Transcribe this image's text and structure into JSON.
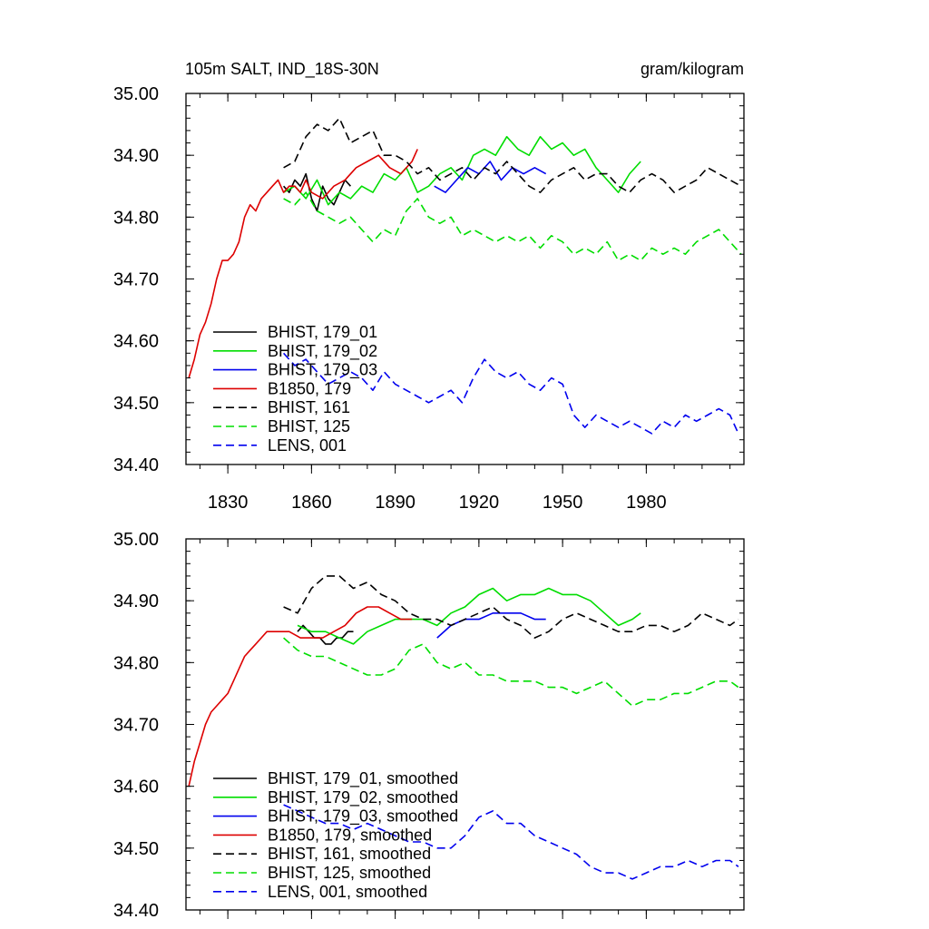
{
  "chart_data": [
    {
      "type": "line",
      "title_left": "105m SALT, IND_18S-30N",
      "title_right": "gram/kilogram",
      "xlim": [
        1815,
        2015
      ],
      "ylim": [
        34.4,
        35.0
      ],
      "xticks": [
        1830,
        1860,
        1890,
        1920,
        1950,
        1980
      ],
      "xtick_labels": [
        "1830",
        "1860",
        "1890",
        "1920",
        "1950",
        "1980"
      ],
      "yticks": [
        34.4,
        34.5,
        34.6,
        34.7,
        34.8,
        34.9,
        35.0
      ],
      "ytick_labels": [
        "34.40",
        "34.50",
        "34.60",
        "34.70",
        "34.80",
        "34.90",
        "35.00"
      ],
      "legend_position": "bottom-left",
      "series": [
        {
          "name": "BHIST, 179_01",
          "color": "#000000",
          "dash": "solid",
          "x": [
            1850,
            1852,
            1854,
            1856,
            1858,
            1860,
            1862,
            1864,
            1866,
            1868,
            1870,
            1872,
            1874
          ],
          "y": [
            34.85,
            34.84,
            34.86,
            34.85,
            34.87,
            34.83,
            34.81,
            34.85,
            34.83,
            34.82,
            34.84,
            34.86,
            34.85
          ]
        },
        {
          "name": "BHIST, 179_02",
          "color": "#00dd00",
          "dash": "solid",
          "x": [
            1850,
            1854,
            1858,
            1862,
            1866,
            1870,
            1874,
            1878,
            1882,
            1886,
            1890,
            1894,
            1898,
            1902,
            1906,
            1910,
            1914,
            1918,
            1922,
            1926,
            1930,
            1934,
            1938,
            1942,
            1946,
            1950,
            1954,
            1958,
            1962,
            1966,
            1970,
            1974,
            1978
          ],
          "y": [
            34.84,
            34.85,
            34.83,
            34.86,
            34.82,
            34.84,
            34.83,
            34.85,
            34.84,
            34.87,
            34.86,
            34.88,
            34.84,
            34.85,
            34.87,
            34.88,
            34.86,
            34.9,
            34.91,
            34.9,
            34.93,
            34.91,
            34.9,
            34.93,
            34.91,
            34.92,
            34.9,
            34.91,
            34.88,
            34.86,
            34.84,
            34.87,
            34.89
          ]
        },
        {
          "name": "BHIST, 179_03",
          "color": "#0000ee",
          "dash": "solid",
          "x": [
            1904,
            1908,
            1912,
            1916,
            1920,
            1924,
            1928,
            1932,
            1936,
            1940,
            1944
          ],
          "y": [
            34.85,
            34.84,
            34.86,
            34.88,
            34.87,
            34.89,
            34.86,
            34.88,
            34.87,
            34.88,
            34.87
          ]
        },
        {
          "name": "B1850, 179",
          "color": "#dd0000",
          "dash": "solid",
          "x": [
            1816,
            1818,
            1820,
            1822,
            1824,
            1826,
            1828,
            1830,
            1832,
            1834,
            1836,
            1838,
            1840,
            1842,
            1844,
            1846,
            1848,
            1850,
            1852,
            1854,
            1856,
            1858,
            1860,
            1864,
            1868,
            1872,
            1876,
            1880,
            1884,
            1888,
            1892,
            1896,
            1898
          ],
          "y": [
            34.54,
            34.57,
            34.61,
            34.63,
            34.66,
            34.7,
            34.73,
            34.73,
            34.74,
            34.76,
            34.8,
            34.82,
            34.81,
            34.83,
            34.84,
            34.85,
            34.86,
            34.84,
            34.85,
            34.85,
            34.84,
            34.86,
            34.84,
            34.83,
            34.85,
            34.86,
            34.88,
            34.89,
            34.9,
            34.88,
            34.87,
            34.89,
            34.91
          ]
        },
        {
          "name": "BHIST, 161",
          "color": "#000000",
          "dash": "dashed",
          "x": [
            1850,
            1854,
            1858,
            1862,
            1866,
            1870,
            1874,
            1878,
            1882,
            1886,
            1890,
            1894,
            1898,
            1902,
            1906,
            1910,
            1914,
            1918,
            1922,
            1926,
            1930,
            1934,
            1938,
            1942,
            1946,
            1950,
            1954,
            1958,
            1962,
            1966,
            1970,
            1974,
            1978,
            1982,
            1986,
            1990,
            1994,
            1998,
            2002,
            2006,
            2010,
            2014
          ],
          "y": [
            34.88,
            34.89,
            34.93,
            34.95,
            34.94,
            34.96,
            34.92,
            34.93,
            34.94,
            34.9,
            34.9,
            34.89,
            34.87,
            34.88,
            34.86,
            34.87,
            34.88,
            34.86,
            34.88,
            34.87,
            34.89,
            34.87,
            34.85,
            34.84,
            34.86,
            34.87,
            34.88,
            34.86,
            34.87,
            34.87,
            34.85,
            34.84,
            34.86,
            34.87,
            34.86,
            34.84,
            34.85,
            34.86,
            34.88,
            34.87,
            34.86,
            34.85
          ]
        },
        {
          "name": "BHIST, 125",
          "color": "#00dd00",
          "dash": "dashed",
          "x": [
            1850,
            1854,
            1858,
            1862,
            1866,
            1870,
            1874,
            1878,
            1882,
            1886,
            1890,
            1894,
            1898,
            1902,
            1906,
            1910,
            1914,
            1918,
            1922,
            1926,
            1930,
            1934,
            1938,
            1942,
            1946,
            1950,
            1954,
            1958,
            1962,
            1966,
            1970,
            1974,
            1978,
            1982,
            1986,
            1990,
            1994,
            1998,
            2002,
            2006,
            2010,
            2014
          ],
          "y": [
            34.83,
            34.82,
            34.84,
            34.81,
            34.8,
            34.79,
            34.8,
            34.78,
            34.76,
            34.78,
            34.77,
            34.81,
            34.83,
            34.8,
            34.79,
            34.8,
            34.77,
            34.78,
            34.77,
            34.76,
            34.77,
            34.76,
            34.77,
            34.75,
            34.77,
            34.76,
            34.74,
            34.75,
            34.74,
            34.76,
            34.73,
            34.74,
            34.73,
            34.75,
            34.74,
            34.75,
            34.74,
            34.76,
            34.77,
            34.78,
            34.76,
            34.74
          ]
        },
        {
          "name": "LENS, 001",
          "color": "#0000ee",
          "dash": "dashed",
          "x": [
            1850,
            1854,
            1858,
            1862,
            1866,
            1870,
            1874,
            1878,
            1882,
            1886,
            1890,
            1894,
            1898,
            1902,
            1906,
            1910,
            1914,
            1918,
            1922,
            1926,
            1930,
            1934,
            1938,
            1942,
            1946,
            1950,
            1954,
            1958,
            1962,
            1966,
            1970,
            1974,
            1978,
            1982,
            1986,
            1990,
            1994,
            1998,
            2002,
            2006,
            2010,
            2013
          ],
          "y": [
            34.58,
            34.56,
            34.57,
            34.55,
            34.53,
            34.54,
            34.55,
            34.54,
            34.52,
            34.55,
            34.53,
            34.52,
            34.51,
            34.5,
            34.51,
            34.52,
            34.5,
            34.54,
            34.57,
            34.55,
            34.54,
            34.55,
            34.53,
            34.52,
            34.54,
            34.53,
            34.48,
            34.46,
            34.48,
            34.47,
            34.46,
            34.47,
            34.46,
            34.45,
            34.47,
            34.46,
            34.48,
            34.47,
            34.48,
            34.49,
            34.48,
            34.45
          ]
        }
      ]
    },
    {
      "type": "line",
      "xlim": [
        1815,
        2015
      ],
      "ylim": [
        34.4,
        35.0
      ],
      "xticks": [
        1830,
        1860,
        1890,
        1920,
        1950,
        1980
      ],
      "yticks": [
        34.4,
        34.5,
        34.6,
        34.7,
        34.8,
        34.9,
        35.0
      ],
      "ytick_labels": [
        "34.40",
        "34.50",
        "34.60",
        "34.70",
        "34.80",
        "34.90",
        "35.00"
      ],
      "legend_position": "bottom-left",
      "series": [
        {
          "name": "BHIST, 179_01, smoothed",
          "color": "#000000",
          "dash": "solid",
          "x": [
            1855,
            1857,
            1859,
            1861,
            1863,
            1865,
            1867,
            1869,
            1871,
            1873,
            1875
          ],
          "y": [
            34.85,
            34.86,
            34.85,
            34.84,
            34.84,
            34.83,
            34.83,
            34.84,
            34.84,
            34.85,
            34.85
          ]
        },
        {
          "name": "BHIST, 179_02, smoothed",
          "color": "#00dd00",
          "dash": "solid",
          "x": [
            1855,
            1860,
            1865,
            1870,
            1875,
            1880,
            1885,
            1890,
            1895,
            1900,
            1905,
            1910,
            1915,
            1920,
            1925,
            1930,
            1935,
            1940,
            1945,
            1950,
            1955,
            1960,
            1965,
            1970,
            1975,
            1978
          ],
          "y": [
            34.86,
            34.85,
            34.85,
            34.84,
            34.83,
            34.85,
            34.86,
            34.87,
            34.87,
            34.87,
            34.86,
            34.88,
            34.89,
            34.91,
            34.92,
            34.9,
            34.91,
            34.91,
            34.92,
            34.91,
            34.91,
            34.9,
            34.88,
            34.86,
            34.87,
            34.88
          ]
        },
        {
          "name": "BHIST, 179_03, smoothed",
          "color": "#0000ee",
          "dash": "solid",
          "x": [
            1905,
            1910,
            1915,
            1920,
            1925,
            1930,
            1935,
            1940,
            1944
          ],
          "y": [
            34.84,
            34.86,
            34.87,
            34.87,
            34.88,
            34.88,
            34.88,
            34.87,
            34.87
          ]
        },
        {
          "name": "B1850, 179, smoothed",
          "color": "#dd0000",
          "dash": "solid",
          "x": [
            1816,
            1818,
            1820,
            1822,
            1824,
            1826,
            1828,
            1830,
            1832,
            1834,
            1836,
            1838,
            1840,
            1842,
            1844,
            1846,
            1848,
            1850,
            1852,
            1856,
            1860,
            1864,
            1868,
            1872,
            1876,
            1880,
            1884,
            1888,
            1892,
            1896
          ],
          "y": [
            34.6,
            34.64,
            34.67,
            34.7,
            34.72,
            34.73,
            34.74,
            34.75,
            34.77,
            34.79,
            34.81,
            34.82,
            34.83,
            34.84,
            34.85,
            34.85,
            34.85,
            34.85,
            34.85,
            34.84,
            34.84,
            34.84,
            34.85,
            34.86,
            34.88,
            34.89,
            34.89,
            34.88,
            34.87,
            34.87
          ]
        },
        {
          "name": "BHIST, 161, smoothed",
          "color": "#000000",
          "dash": "dashed",
          "x": [
            1850,
            1855,
            1860,
            1865,
            1870,
            1875,
            1880,
            1885,
            1890,
            1895,
            1900,
            1905,
            1910,
            1915,
            1920,
            1925,
            1930,
            1935,
            1940,
            1945,
            1950,
            1955,
            1960,
            1965,
            1970,
            1975,
            1980,
            1985,
            1990,
            1995,
            2000,
            2005,
            2010,
            2013
          ],
          "y": [
            34.89,
            34.88,
            34.92,
            34.94,
            34.94,
            34.92,
            34.93,
            34.91,
            34.9,
            34.88,
            34.87,
            34.87,
            34.86,
            34.87,
            34.88,
            34.89,
            34.87,
            34.86,
            34.84,
            34.85,
            34.87,
            34.88,
            34.87,
            34.86,
            34.85,
            34.85,
            34.86,
            34.86,
            34.85,
            34.86,
            34.88,
            34.87,
            34.86,
            34.87
          ]
        },
        {
          "name": "BHIST, 125, smoothed",
          "color": "#00dd00",
          "dash": "dashed",
          "x": [
            1850,
            1855,
            1860,
            1865,
            1870,
            1875,
            1880,
            1885,
            1890,
            1895,
            1900,
            1905,
            1910,
            1915,
            1920,
            1925,
            1930,
            1935,
            1940,
            1945,
            1950,
            1955,
            1960,
            1965,
            1970,
            1975,
            1980,
            1985,
            1990,
            1995,
            2000,
            2005,
            2010,
            2013
          ],
          "y": [
            34.84,
            34.82,
            34.81,
            34.81,
            34.8,
            34.79,
            34.78,
            34.78,
            34.79,
            34.82,
            34.83,
            34.8,
            34.79,
            34.8,
            34.78,
            34.78,
            34.77,
            34.77,
            34.77,
            34.76,
            34.76,
            34.75,
            34.76,
            34.77,
            34.75,
            34.73,
            34.74,
            34.74,
            34.75,
            34.75,
            34.76,
            34.77,
            34.77,
            34.76
          ]
        },
        {
          "name": "LENS, 001, smoothed",
          "color": "#0000ee",
          "dash": "dashed",
          "x": [
            1850,
            1855,
            1860,
            1865,
            1870,
            1875,
            1880,
            1885,
            1890,
            1895,
            1900,
            1905,
            1910,
            1915,
            1920,
            1925,
            1930,
            1935,
            1940,
            1945,
            1950,
            1955,
            1960,
            1965,
            1970,
            1975,
            1980,
            1985,
            1990,
            1995,
            2000,
            2005,
            2010,
            2013
          ],
          "y": [
            34.57,
            34.56,
            34.55,
            34.54,
            34.54,
            34.53,
            34.54,
            34.53,
            34.52,
            34.51,
            34.51,
            34.5,
            34.5,
            34.52,
            34.55,
            34.56,
            34.54,
            34.54,
            34.52,
            34.51,
            34.5,
            34.49,
            34.47,
            34.46,
            34.46,
            34.45,
            34.46,
            34.47,
            34.47,
            34.48,
            34.47,
            34.48,
            34.48,
            34.47
          ]
        }
      ]
    }
  ]
}
